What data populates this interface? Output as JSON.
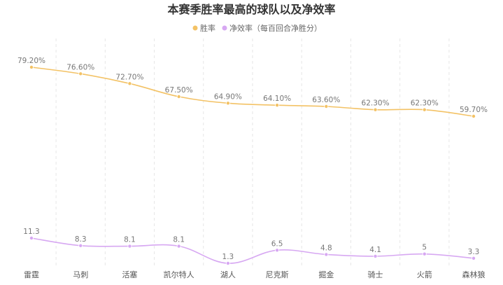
{
  "chart_data": {
    "type": "line",
    "title": "本赛季胜率最高的球队以及净效率",
    "categories": [
      "雷霆",
      "马刺",
      "活塞",
      "凯尔特人",
      "湖人",
      "尼克斯",
      "掘金",
      "骑士",
      "火箭",
      "森林狼"
    ],
    "series": [
      {
        "name": "胜率",
        "color": "#f3c265",
        "values": [
          79.2,
          76.6,
          72.7,
          67.5,
          64.9,
          64.1,
          63.6,
          62.3,
          62.3,
          59.7
        ],
        "labels": [
          "79.20%",
          "76.60%",
          "72.70%",
          "67.50%",
          "64.90%",
          "64.10%",
          "63.60%",
          "62.30%",
          "62.30%",
          "59.70%"
        ]
      },
      {
        "name": "净效率（每百回合净胜分）",
        "color": "#d7a8f2",
        "values": [
          11.3,
          8.3,
          8.1,
          8.1,
          1.3,
          6.5,
          4.8,
          4.1,
          5,
          3.3
        ],
        "labels": [
          "11.3",
          "8.3",
          "8.1",
          "8.1",
          "1.3",
          "6.5",
          "4.8",
          "4.1",
          "5",
          "3.3"
        ]
      }
    ],
    "legend_position": "top-center",
    "grid": "vertical dashed"
  }
}
